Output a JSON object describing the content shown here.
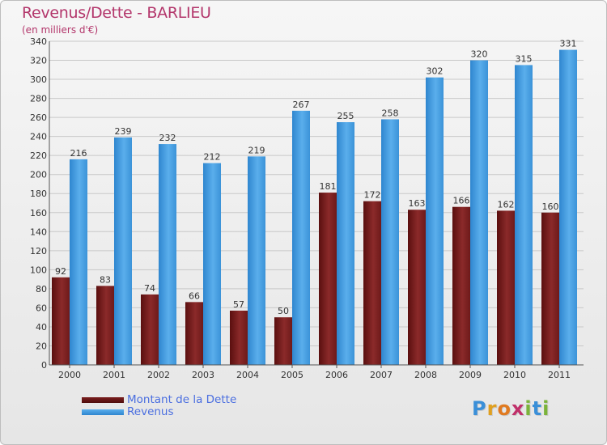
{
  "header": {
    "title": "Revenus/Dette - BARLIEU",
    "subtitle": "(en milliers d'€)"
  },
  "legend": {
    "debt_label": "Montant de la Dette",
    "revenue_label": "Revenus"
  },
  "logo": {
    "letters": [
      "P",
      "r",
      "o",
      "x",
      "i",
      "t",
      "i"
    ]
  },
  "colors": {
    "title": "#b3366b",
    "debt": "#7a1e1e",
    "revenue": "#4b9ee0",
    "legend_text": "#4a6ee0"
  },
  "chart_data": {
    "type": "bar",
    "title": "Revenus/Dette - BARLIEU",
    "ylabel": "(en milliers d'€)",
    "xlabel": "",
    "ylim": [
      0,
      340
    ],
    "yticks": [
      0,
      20,
      40,
      60,
      80,
      100,
      120,
      140,
      160,
      180,
      200,
      220,
      240,
      260,
      280,
      300,
      320,
      340
    ],
    "grid": true,
    "legend_position": "bottom-left",
    "categories": [
      "2000",
      "2001",
      "2002",
      "2003",
      "2004",
      "2005",
      "2006",
      "2007",
      "2008",
      "2009",
      "2010",
      "2011"
    ],
    "series": [
      {
        "name": "Montant de la Dette",
        "values": [
          92,
          83,
          74,
          66,
          57,
          50,
          181,
          172,
          163,
          166,
          162,
          160
        ]
      },
      {
        "name": "Revenus",
        "values": [
          216,
          239,
          232,
          212,
          219,
          267,
          255,
          258,
          302,
          320,
          315,
          331
        ]
      }
    ]
  }
}
